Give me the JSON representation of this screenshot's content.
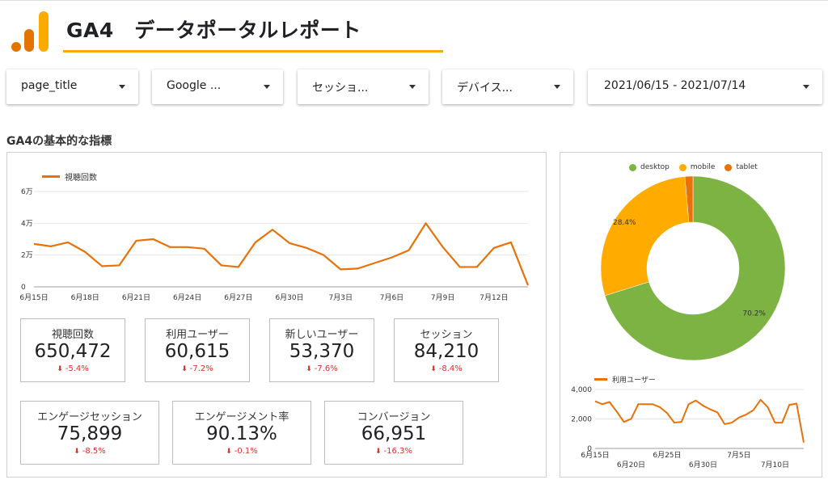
{
  "header": {
    "title": "GA4　データポータルレポート",
    "brand_color": "#f9ab00",
    "logo_icon": "analytics-bars-icon"
  },
  "filters": [
    {
      "label": "page_title"
    },
    {
      "label": "Google ..."
    },
    {
      "label": "セッショ..."
    },
    {
      "label": "デバイス..."
    },
    {
      "label": "2021/06/15 - 2021/07/14"
    }
  ],
  "section": {
    "title": "GA4の基本的な指標"
  },
  "kpis": [
    {
      "label": "視聴回数",
      "value": "650,472",
      "delta": "-5.4%"
    },
    {
      "label": "利用ユーザー",
      "value": "60,615",
      "delta": "-7.2%"
    },
    {
      "label": "新しいユーザー",
      "value": "53,370",
      "delta": "-7.6%"
    },
    {
      "label": "セッション",
      "value": "84,210",
      "delta": "-8.4%"
    },
    {
      "label": "エンゲージセッション",
      "value": "75,899",
      "delta": "-8.5%"
    },
    {
      "label": "エンゲージメント率",
      "value": "90.13%",
      "delta": "-0.1%"
    },
    {
      "label": "コンバージョン",
      "value": "66,951",
      "delta": "-16.3%"
    }
  ],
  "colors": {
    "line": "#e8710a",
    "delta_negative": "#d93025"
  },
  "chart_data": [
    {
      "type": "line",
      "series": [
        {
          "name": "視聴回数",
          "color": "#e8710a",
          "values": [
            27000,
            25500,
            28000,
            22000,
            13000,
            13500,
            29000,
            30000,
            25000,
            25000,
            24000,
            13500,
            12500,
            28000,
            36000,
            27500,
            24500,
            20000,
            11000,
            11500,
            15000,
            18500,
            23000,
            40000,
            25000,
            12500,
            12500,
            24500,
            28000,
            1000
          ]
        }
      ],
      "x_tick_labels": [
        "6月15日",
        "6月18日",
        "6月21日",
        "6月24日",
        "6月27日",
        "6月30日",
        "7月3日",
        "7月6日",
        "7月9日",
        "7月12日"
      ],
      "y_tick_labels": [
        "0",
        "2万",
        "4万",
        "6万"
      ],
      "ylim": [
        0,
        60000
      ],
      "grid": true,
      "legend": "top-left"
    },
    {
      "type": "pie",
      "donut": true,
      "labels": [
        "desktop",
        "mobile",
        "tablet"
      ],
      "values": [
        70.2,
        28.4,
        1.4
      ],
      "colors": [
        "#7cb342",
        "#ffab00",
        "#e8710a"
      ],
      "slice_labels": [
        "70.2%",
        "28.4%",
        ""
      ],
      "legend": "top"
    },
    {
      "type": "line",
      "series": [
        {
          "name": "利用ユーザー",
          "color": "#e8710a",
          "values": [
            3200,
            3000,
            3150,
            2500,
            1800,
            2000,
            3000,
            3000,
            3000,
            2800,
            2400,
            1750,
            1800,
            3000,
            3250,
            2900,
            2650,
            2450,
            1650,
            1750,
            2100,
            2300,
            2600,
            3300,
            2800,
            1750,
            1750,
            2950,
            3050,
            400
          ]
        }
      ],
      "x_tick_labels_top": [
        "6月15日",
        "6月25日",
        "7月5日"
      ],
      "x_tick_labels_bottom": [
        "6月20日",
        "6月30日",
        "7月10日"
      ],
      "y_tick_labels": [
        "0",
        "2,000",
        "4,000"
      ],
      "ylim": [
        0,
        4000
      ],
      "grid": true,
      "legend": "top-left"
    }
  ]
}
